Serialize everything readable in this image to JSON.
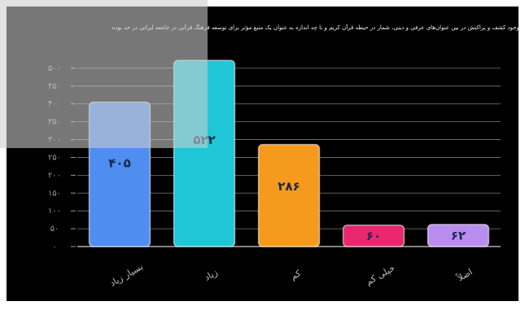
{
  "chart_data": {
    "type": "bar",
    "title": "وجود کشف و پراکنش در بین عنوان‌های عرفی و دینی، شمار در حیطه قرآن کریم و تا چه اندازه به عنوان یک منبع مؤثر برای توسعه فرهنگ قرآنی در جامعه ایرانی در حد بوده",
    "categories": [
      "بسیار زیاد",
      "زیاد",
      "کم",
      "خیلی کم",
      "اصلاً"
    ],
    "values": [
      405,
      522,
      286,
      60,
      62
    ],
    "value_labels": [
      "۴۰۵",
      "۵۲۲",
      "۲۸۶",
      "۶۰",
      "۶۲"
    ],
    "colors": [
      "#4f8df0",
      "#1fc6d6",
      "#f59a1c",
      "#e8276e",
      "#b98df0"
    ],
    "ylim": [
      0,
      550
    ],
    "yticks": [
      0,
      50,
      100,
      150,
      200,
      250,
      300,
      350,
      400,
      450,
      500
    ],
    "ytick_labels": [
      "۰",
      "۵۰",
      "۱۰۰",
      "۱۵۰",
      "۲۰۰",
      "۲۵۰",
      "۳۰۰",
      "۳۵۰",
      "۴۰۰",
      "۴۵۰",
      "۵۰۰"
    ],
    "grid": true,
    "xlabel": "",
    "ylabel": ""
  }
}
